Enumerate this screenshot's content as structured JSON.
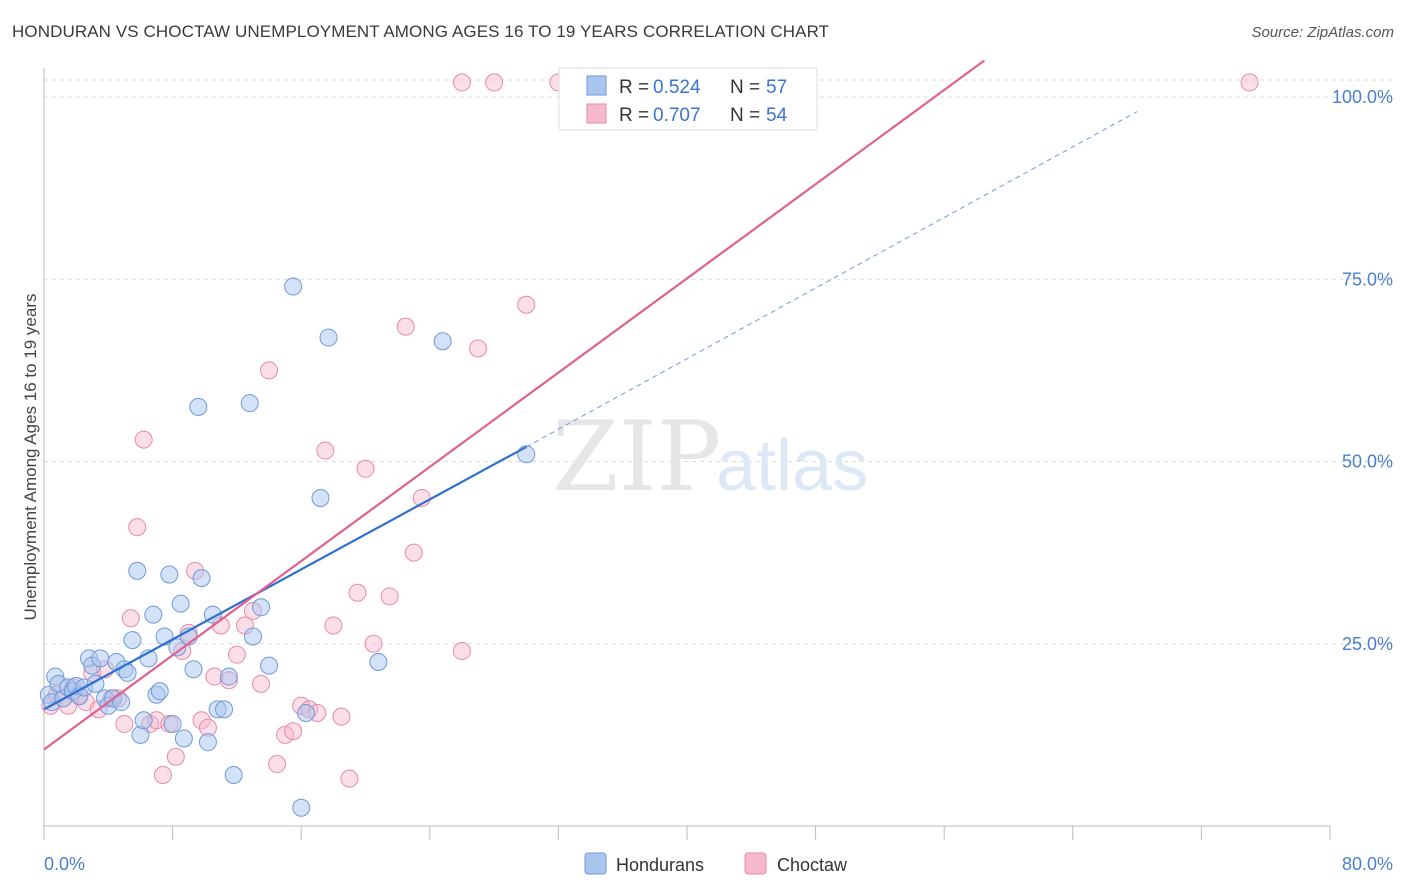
{
  "title": "HONDURAN VS CHOCTAW UNEMPLOYMENT AMONG AGES 16 TO 19 YEARS CORRELATION CHART",
  "source": "Source: ZipAtlas.com",
  "watermark": {
    "zip": "ZIP",
    "atlas": "atlas"
  },
  "colors": {
    "blue_fill": "#a9c6ef",
    "blue_stroke": "#6f9ad8",
    "blue_line": "#2f6fcf",
    "pink_fill": "#f6b8cc",
    "pink_stroke": "#e98aa8",
    "pink_line": "#e0608f",
    "grid": "#dddddd",
    "tick_text": "#4a7fcf"
  },
  "legend": {
    "r_label": "R =",
    "n_label": "N =",
    "series": [
      {
        "r": "0.524",
        "n": "57"
      },
      {
        "r": "0.707",
        "n": "54"
      }
    ]
  },
  "chart_data": {
    "type": "scatter",
    "xlabel": "",
    "ylabel": "Unemployment Among Ages 16 to 19 years",
    "xlim": [
      0,
      80
    ],
    "ylim": [
      0,
      105
    ],
    "x_tick_labels": [
      {
        "value": 0,
        "label": "0.0%"
      },
      {
        "value": 80,
        "label": "80.0%"
      }
    ],
    "y_tick_labels": [
      {
        "value": 25,
        "label": "25.0%"
      },
      {
        "value": 50,
        "label": "50.0%"
      },
      {
        "value": 75,
        "label": "75.0%"
      },
      {
        "value": 100,
        "label": "100.0%"
      }
    ],
    "grid": "horizontal dashed",
    "legend_placement": "top-center",
    "series": [
      {
        "name": "Hondurans",
        "color": "#a9c6ef",
        "trend": {
          "x0": 0,
          "y0": 16.0,
          "x1": 30,
          "y1": 52.0,
          "extended_to": [
            68,
            98.0
          ]
        },
        "points": [
          [
            0.3,
            18.0
          ],
          [
            0.5,
            17.0
          ],
          [
            0.7,
            20.5
          ],
          [
            0.9,
            19.5
          ],
          [
            1.2,
            17.5
          ],
          [
            1.5,
            19.0
          ],
          [
            1.8,
            18.5
          ],
          [
            2.0,
            19.2
          ],
          [
            2.2,
            17.8
          ],
          [
            2.5,
            19.0
          ],
          [
            2.8,
            23.0
          ],
          [
            3.0,
            22.0
          ],
          [
            3.2,
            19.5
          ],
          [
            3.5,
            23.0
          ],
          [
            3.8,
            17.5
          ],
          [
            4.0,
            16.5
          ],
          [
            4.3,
            17.5
          ],
          [
            4.5,
            22.5
          ],
          [
            4.8,
            17.0
          ],
          [
            5.0,
            21.5
          ],
          [
            5.2,
            21.0
          ],
          [
            5.5,
            25.5
          ],
          [
            5.8,
            35.0
          ],
          [
            6.0,
            12.5
          ],
          [
            6.2,
            14.5
          ],
          [
            6.5,
            23.0
          ],
          [
            6.8,
            29.0
          ],
          [
            7.0,
            18.0
          ],
          [
            7.2,
            18.5
          ],
          [
            7.5,
            26.0
          ],
          [
            7.8,
            34.5
          ],
          [
            8.0,
            14.0
          ],
          [
            8.3,
            24.5
          ],
          [
            8.5,
            30.5
          ],
          [
            8.7,
            12.0
          ],
          [
            9.0,
            26.0
          ],
          [
            9.3,
            21.5
          ],
          [
            9.6,
            57.5
          ],
          [
            9.8,
            34.0
          ],
          [
            10.2,
            11.5
          ],
          [
            10.5,
            29.0
          ],
          [
            10.8,
            16.0
          ],
          [
            11.2,
            16.0
          ],
          [
            11.5,
            20.5
          ],
          [
            11.8,
            7.0
          ],
          [
            12.8,
            58.0
          ],
          [
            13.0,
            26.0
          ],
          [
            13.5,
            30.0
          ],
          [
            14.0,
            22.0
          ],
          [
            15.5,
            74.0
          ],
          [
            16.0,
            2.5
          ],
          [
            16.3,
            15.5
          ],
          [
            17.2,
            45.0
          ],
          [
            17.7,
            67.0
          ],
          [
            20.8,
            22.5
          ],
          [
            24.8,
            66.5
          ],
          [
            30.0,
            51.0
          ]
        ]
      },
      {
        "name": "Choctaw",
        "color": "#f6b8cc",
        "trend": {
          "x0": 0,
          "y0": 10.5,
          "x1": 58.5,
          "y1": 105.0
        },
        "points": [
          [
            0.4,
            16.5
          ],
          [
            0.8,
            18.0
          ],
          [
            1.2,
            17.5
          ],
          [
            1.5,
            16.5
          ],
          [
            1.8,
            19.0
          ],
          [
            2.2,
            18.0
          ],
          [
            2.6,
            17.0
          ],
          [
            3.0,
            21.0
          ],
          [
            3.4,
            16.0
          ],
          [
            3.8,
            21.5
          ],
          [
            4.2,
            17.5
          ],
          [
            4.6,
            17.5
          ],
          [
            5.0,
            14.0
          ],
          [
            5.4,
            28.5
          ],
          [
            5.8,
            41.0
          ],
          [
            6.2,
            53.0
          ],
          [
            6.6,
            14.0
          ],
          [
            7.0,
            14.5
          ],
          [
            7.4,
            7.0
          ],
          [
            7.8,
            14.0
          ],
          [
            8.2,
            9.5
          ],
          [
            8.6,
            24.0
          ],
          [
            9.0,
            26.5
          ],
          [
            9.4,
            35.0
          ],
          [
            9.8,
            14.5
          ],
          [
            10.2,
            13.5
          ],
          [
            10.6,
            20.5
          ],
          [
            11.0,
            27.5
          ],
          [
            11.5,
            20.0
          ],
          [
            12.0,
            23.5
          ],
          [
            12.5,
            27.5
          ],
          [
            13.0,
            29.5
          ],
          [
            13.5,
            19.5
          ],
          [
            14.0,
            62.5
          ],
          [
            14.5,
            8.5
          ],
          [
            15.0,
            12.5
          ],
          [
            15.5,
            13.0
          ],
          [
            16.0,
            16.5
          ],
          [
            16.5,
            16.0
          ],
          [
            17.0,
            15.5
          ],
          [
            17.5,
            51.5
          ],
          [
            18.0,
            27.5
          ],
          [
            18.5,
            15.0
          ],
          [
            19.0,
            6.5
          ],
          [
            19.5,
            32.0
          ],
          [
            20.0,
            49.0
          ],
          [
            20.5,
            25.0
          ],
          [
            21.5,
            31.5
          ],
          [
            22.5,
            68.5
          ],
          [
            23.0,
            37.5
          ],
          [
            23.5,
            45.0
          ],
          [
            26.0,
            24.0
          ],
          [
            27.0,
            65.5
          ],
          [
            30.0,
            71.5
          ]
        ],
        "points_top": [
          [
            26.0,
            102.0
          ],
          [
            28.0,
            102.0
          ],
          [
            32.0,
            102.0
          ],
          [
            37.5,
            102.0
          ],
          [
            75.0,
            102.0
          ]
        ]
      }
    ],
    "bottom_legend": [
      "Hondurans",
      "Choctaw"
    ]
  }
}
